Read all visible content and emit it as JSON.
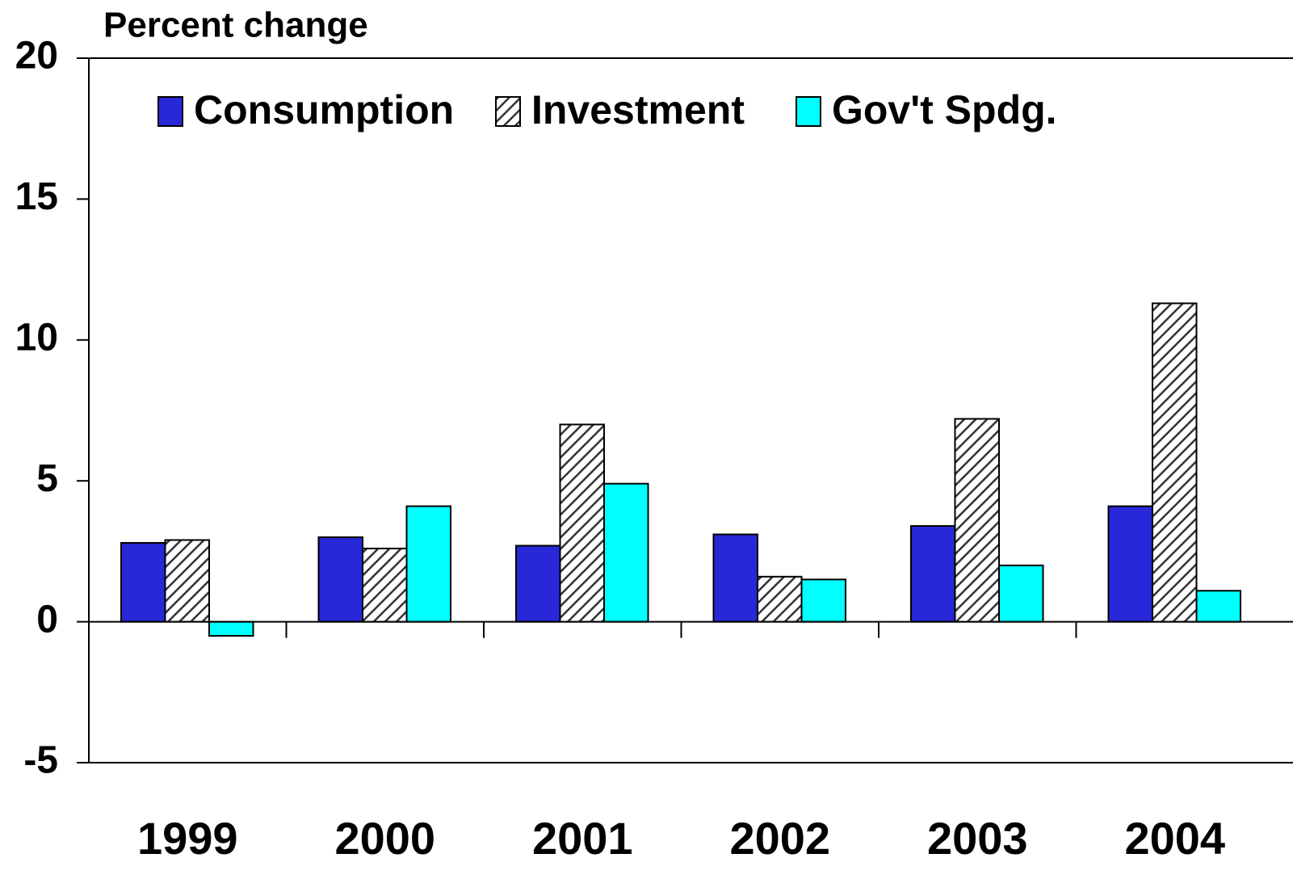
{
  "chart_data": {
    "type": "bar",
    "y_label": "Percent change",
    "categories": [
      "1999",
      "2000",
      "2001",
      "2002",
      "2003",
      "2004"
    ],
    "series": [
      {
        "name": "Consumption",
        "color": "#2828d8",
        "values": [
          2.8,
          3.0,
          2.7,
          3.1,
          3.4,
          4.1
        ]
      },
      {
        "name": "Investment",
        "color": "#ffffff",
        "hatch": true,
        "values": [
          2.9,
          2.6,
          7.0,
          1.6,
          7.2,
          11.3
        ]
      },
      {
        "name": "Gov't Spdg.",
        "color": "#00ffff",
        "values": [
          -0.5,
          4.1,
          4.9,
          1.5,
          2.0,
          1.1
        ]
      }
    ],
    "ylim": [
      -5,
      20
    ],
    "yticks": [
      -5,
      0,
      5,
      10,
      15,
      20
    ],
    "legend": "top"
  }
}
